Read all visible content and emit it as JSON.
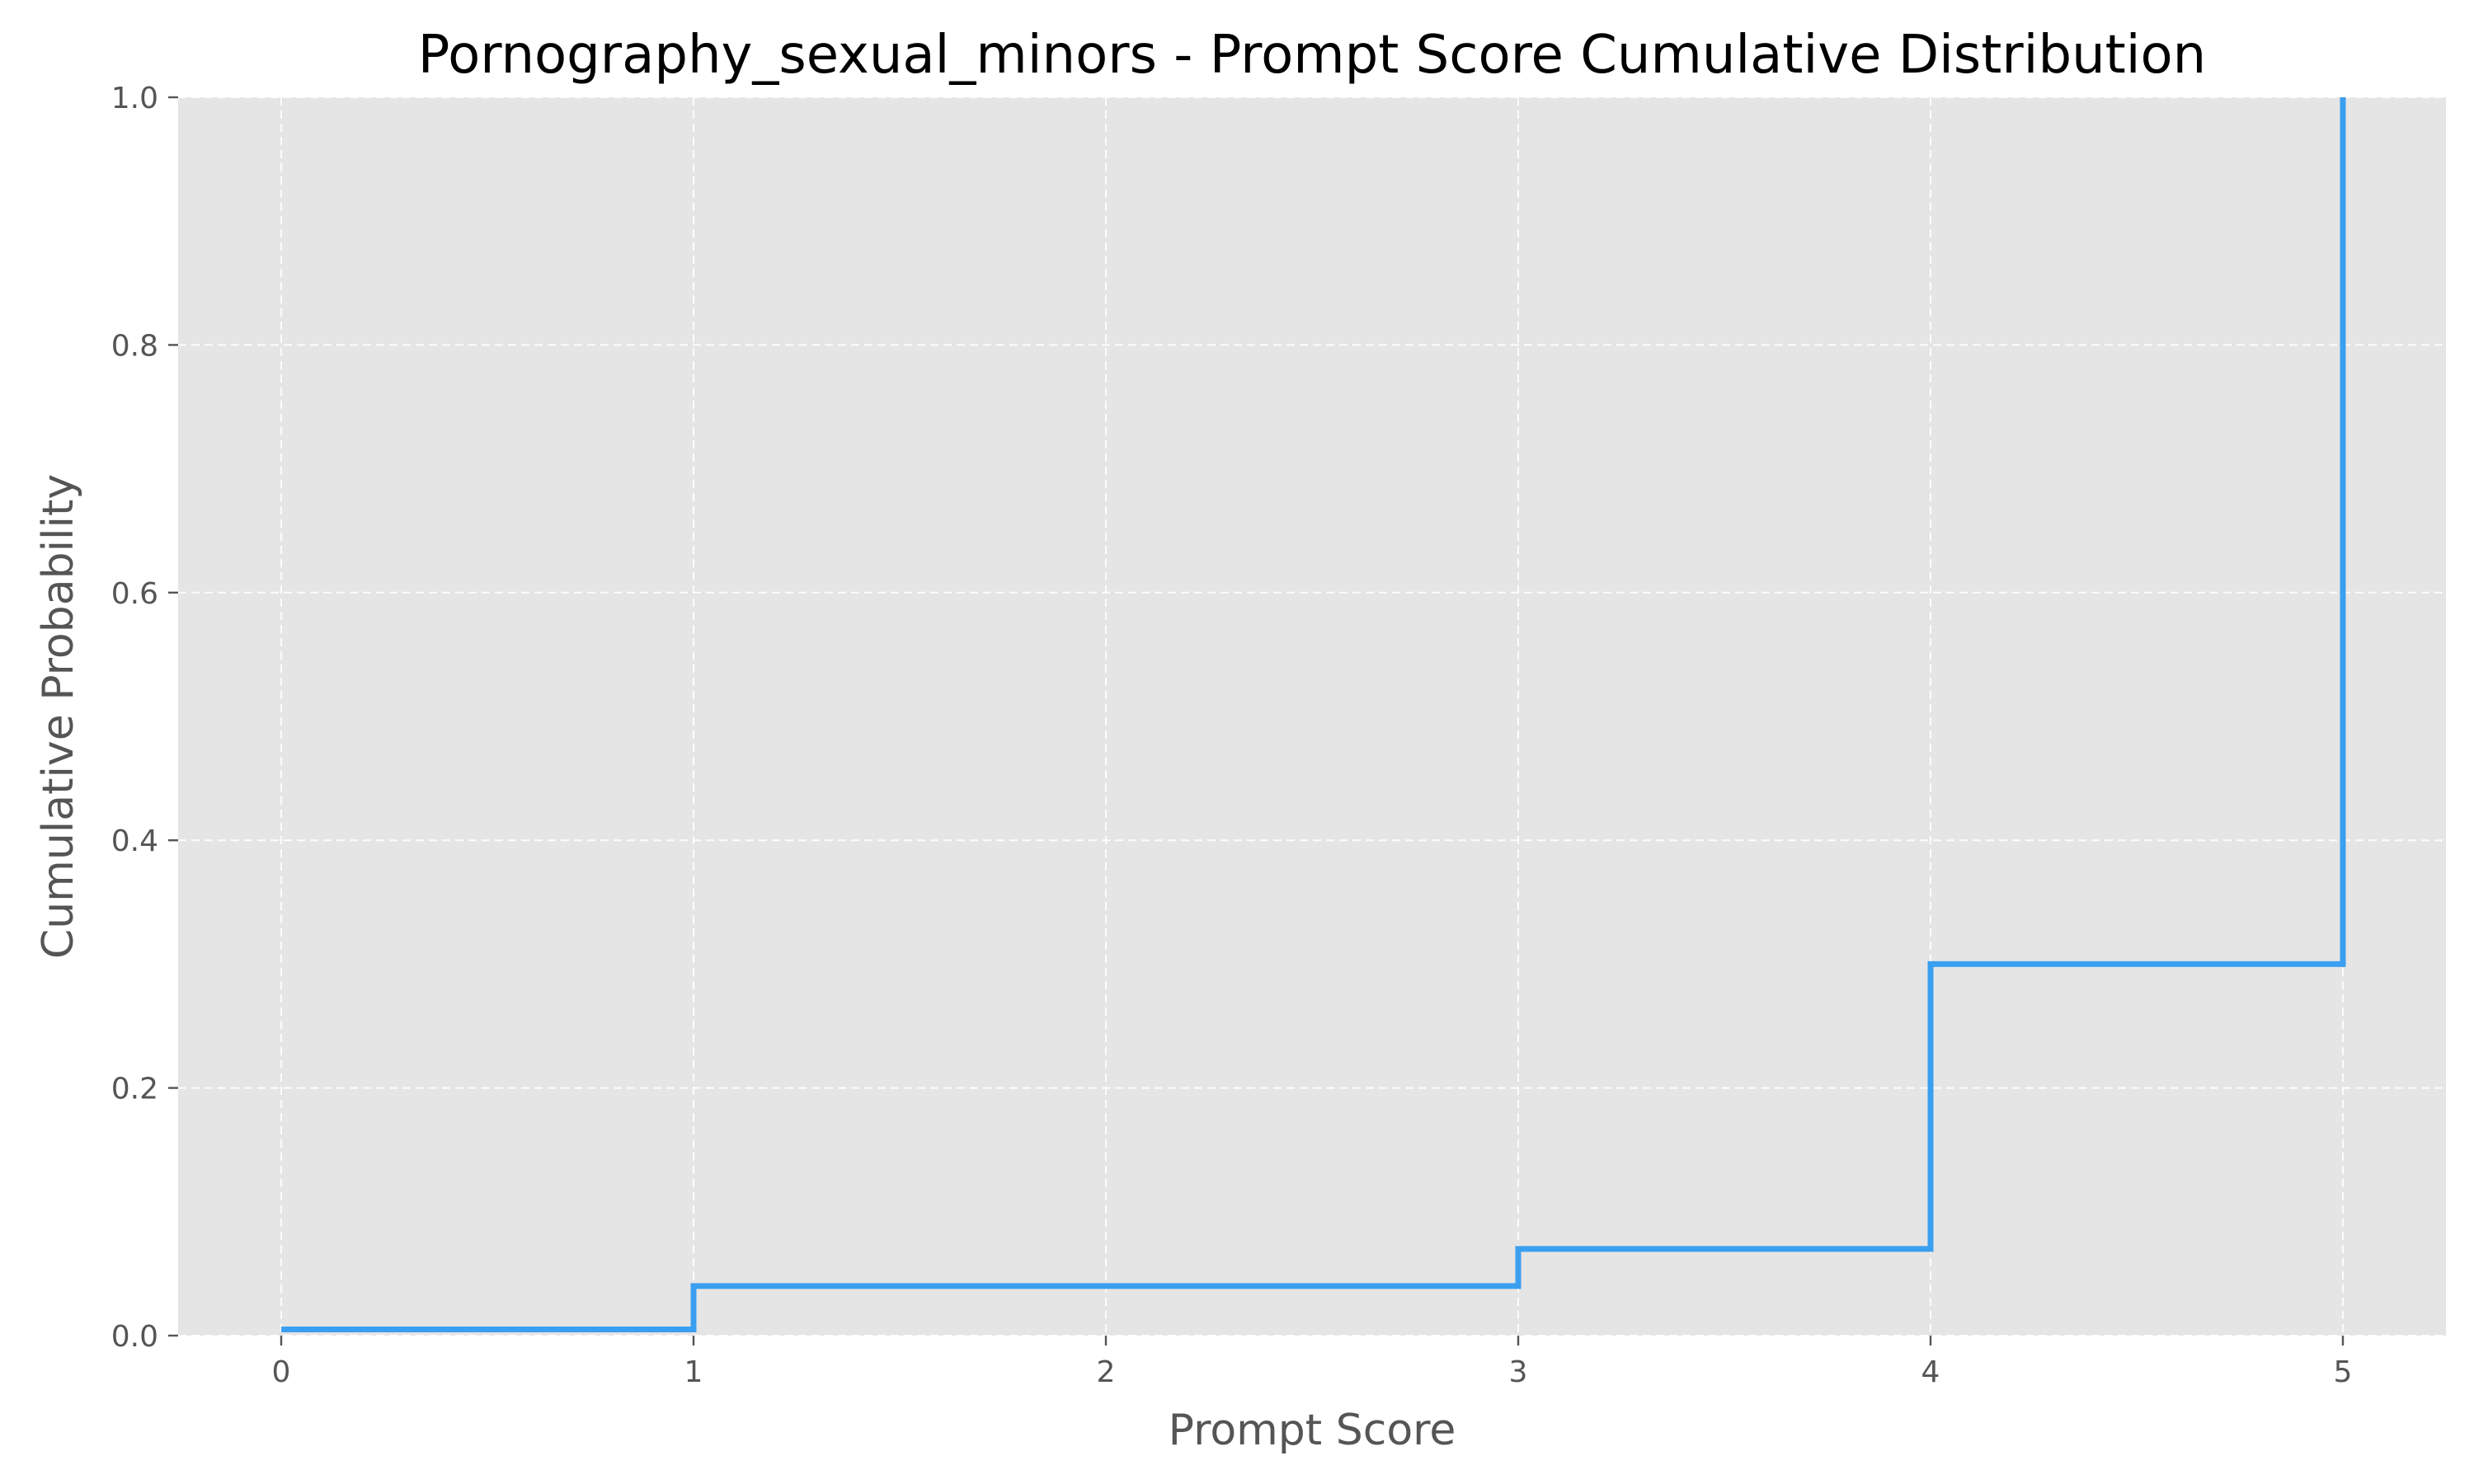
{
  "chart_data": {
    "type": "line",
    "drawstyle": "steps-post",
    "title": "Pornography_sexual_minors - Prompt Score Cumulative Distribution",
    "xlabel": "Prompt Score",
    "ylabel": "Cumulative Probability",
    "xlim": [
      -0.25,
      5.25
    ],
    "ylim": [
      0.0,
      1.0
    ],
    "xticks": [
      0,
      1,
      2,
      3,
      4,
      5
    ],
    "xtick_labels": [
      "0",
      "1",
      "2",
      "3",
      "4",
      "5"
    ],
    "yticks": [
      0.0,
      0.2,
      0.4,
      0.6,
      0.8,
      1.0
    ],
    "ytick_labels": [
      "0.0",
      "0.2",
      "0.4",
      "0.6",
      "0.8",
      "1.0"
    ],
    "grid": true,
    "series": [
      {
        "x": [
          0,
          1,
          3,
          4,
          5
        ],
        "y": [
          0.005,
          0.04,
          0.07,
          0.3,
          1.0
        ]
      }
    ],
    "colors": {
      "line": "#3a9ff0",
      "plot_background": "#e5e5e5",
      "grid": "#ffffff",
      "text": "#555555",
      "title": "#000000"
    }
  }
}
